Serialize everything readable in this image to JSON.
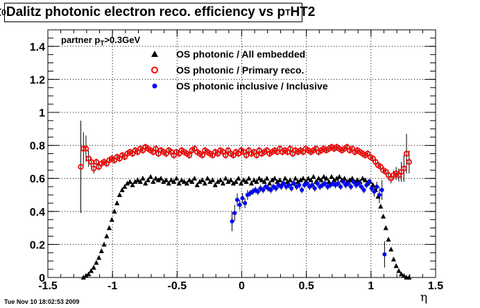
{
  "chart_data": {
    "type": "scatter",
    "title_prefix": "π",
    "title_sup": "0",
    "title_main": " Dalitz photonic electron reco. efficiency vs p",
    "title_sub": "T",
    "title_suffix": " HT2",
    "annotation_main": "partner p",
    "annotation_sub": "T",
    "annotation_tail": ">0.3GeV",
    "xlabel": "η",
    "ylabel": "",
    "xlim": [
      -1.5,
      1.5
    ],
    "ylim": [
      0,
      1.5
    ],
    "xticks": [
      "-1.5",
      "-1",
      "-0.5",
      "0",
      "0.5",
      "1",
      "1.5"
    ],
    "yticks": [
      "0",
      "0.2",
      "0.4",
      "0.6",
      "0.8",
      "1",
      "1.2",
      "1.4"
    ],
    "grid": true,
    "legend_position": "top",
    "series": [
      {
        "name": "OS photonic / All embedded",
        "marker": "triangle",
        "color": "#000000",
        "x": [
          -1.225,
          -1.205,
          -1.185,
          -1.165,
          -1.145,
          -1.125,
          -1.105,
          -1.085,
          -1.065,
          -1.045,
          -1.025,
          -1.005,
          -0.985,
          -0.965,
          -0.945,
          -0.925,
          -0.905,
          -0.885,
          -0.865,
          -0.845,
          -0.825,
          -0.805,
          -0.785,
          -0.765,
          -0.745,
          -0.725,
          -0.705,
          -0.685,
          -0.665,
          -0.645,
          -0.625,
          -0.605,
          -0.585,
          -0.565,
          -0.545,
          -0.525,
          -0.505,
          -0.485,
          -0.465,
          -0.445,
          -0.425,
          -0.405,
          -0.385,
          -0.365,
          -0.345,
          -0.325,
          -0.305,
          -0.285,
          -0.265,
          -0.245,
          -0.225,
          -0.205,
          -0.185,
          -0.165,
          -0.145,
          -0.125,
          -0.105,
          -0.085,
          -0.065,
          -0.045,
          -0.025,
          -0.005,
          0.015,
          0.035,
          0.055,
          0.075,
          0.095,
          0.115,
          0.135,
          0.155,
          0.175,
          0.195,
          0.215,
          0.235,
          0.255,
          0.275,
          0.295,
          0.315,
          0.335,
          0.355,
          0.375,
          0.395,
          0.415,
          0.435,
          0.455,
          0.475,
          0.495,
          0.515,
          0.535,
          0.555,
          0.575,
          0.595,
          0.615,
          0.635,
          0.655,
          0.675,
          0.695,
          0.715,
          0.735,
          0.755,
          0.775,
          0.795,
          0.815,
          0.835,
          0.855,
          0.875,
          0.895,
          0.915,
          0.935,
          0.955,
          0.975,
          0.995,
          1.015,
          1.035,
          1.055,
          1.075,
          1.095,
          1.115,
          1.135,
          1.155,
          1.175,
          1.195,
          1.215,
          1.235,
          1.255,
          1.275,
          1.295
        ],
        "y": [
          0.0,
          0.01,
          0.02,
          0.04,
          0.06,
          0.09,
          0.12,
          0.16,
          0.2,
          0.25,
          0.3,
          0.35,
          0.4,
          0.45,
          0.5,
          0.53,
          0.55,
          0.57,
          0.58,
          0.56,
          0.58,
          0.59,
          0.58,
          0.6,
          0.57,
          0.59,
          0.61,
          0.58,
          0.6,
          0.59,
          0.6,
          0.58,
          0.59,
          0.57,
          0.59,
          0.58,
          0.6,
          0.57,
          0.59,
          0.58,
          0.57,
          0.59,
          0.58,
          0.6,
          0.56,
          0.58,
          0.59,
          0.57,
          0.6,
          0.58,
          0.59,
          0.56,
          0.58,
          0.59,
          0.57,
          0.6,
          0.58,
          0.59,
          0.57,
          0.58,
          0.6,
          0.57,
          0.59,
          0.58,
          0.6,
          0.57,
          0.59,
          0.58,
          0.6,
          0.59,
          0.58,
          0.6,
          0.57,
          0.59,
          0.6,
          0.58,
          0.59,
          0.57,
          0.6,
          0.58,
          0.59,
          0.57,
          0.6,
          0.58,
          0.59,
          0.6,
          0.58,
          0.6,
          0.59,
          0.61,
          0.58,
          0.6,
          0.59,
          0.61,
          0.6,
          0.58,
          0.61,
          0.59,
          0.6,
          0.61,
          0.59,
          0.6,
          0.58,
          0.59,
          0.6,
          0.58,
          0.59,
          0.58,
          0.6,
          0.59,
          0.57,
          0.58,
          0.56,
          0.53,
          0.49,
          0.43,
          0.37,
          0.3,
          0.23,
          0.17,
          0.11,
          0.07,
          0.04,
          0.02,
          0.01,
          0.0,
          0.0
        ]
      },
      {
        "name": "OS photonic / Primary reco.",
        "marker": "open-circle",
        "color": "#ff0000",
        "x": [
          -1.245,
          -1.225,
          -1.205,
          -1.185,
          -1.165,
          -1.145,
          -1.125,
          -1.105,
          -1.085,
          -1.065,
          -1.045,
          -1.025,
          -1.005,
          -0.985,
          -0.965,
          -0.945,
          -0.925,
          -0.905,
          -0.885,
          -0.865,
          -0.845,
          -0.825,
          -0.805,
          -0.785,
          -0.765,
          -0.745,
          -0.725,
          -0.705,
          -0.685,
          -0.665,
          -0.645,
          -0.625,
          -0.605,
          -0.585,
          -0.565,
          -0.545,
          -0.525,
          -0.505,
          -0.485,
          -0.465,
          -0.445,
          -0.425,
          -0.405,
          -0.385,
          -0.365,
          -0.345,
          -0.325,
          -0.305,
          -0.285,
          -0.265,
          -0.245,
          -0.225,
          -0.205,
          -0.185,
          -0.165,
          -0.145,
          -0.125,
          -0.105,
          -0.085,
          -0.065,
          -0.045,
          -0.025,
          -0.005,
          0.015,
          0.035,
          0.055,
          0.075,
          0.095,
          0.115,
          0.135,
          0.155,
          0.175,
          0.195,
          0.215,
          0.235,
          0.255,
          0.275,
          0.295,
          0.315,
          0.335,
          0.355,
          0.375,
          0.395,
          0.415,
          0.435,
          0.455,
          0.475,
          0.495,
          0.515,
          0.535,
          0.555,
          0.575,
          0.595,
          0.615,
          0.635,
          0.655,
          0.675,
          0.695,
          0.715,
          0.735,
          0.755,
          0.775,
          0.795,
          0.815,
          0.835,
          0.855,
          0.875,
          0.895,
          0.915,
          0.935,
          0.955,
          0.975,
          0.995,
          1.015,
          1.035,
          1.055,
          1.075,
          1.095,
          1.115,
          1.135,
          1.155,
          1.175,
          1.195,
          1.215,
          1.235,
          1.255,
          1.275,
          1.295
        ],
        "y": [
          0.67,
          0.78,
          0.78,
          0.72,
          0.7,
          0.66,
          0.7,
          0.67,
          0.69,
          0.7,
          0.69,
          0.71,
          0.72,
          0.71,
          0.73,
          0.72,
          0.74,
          0.73,
          0.75,
          0.76,
          0.75,
          0.77,
          0.76,
          0.78,
          0.77,
          0.79,
          0.78,
          0.77,
          0.76,
          0.78,
          0.75,
          0.77,
          0.76,
          0.75,
          0.77,
          0.76,
          0.74,
          0.76,
          0.75,
          0.77,
          0.76,
          0.75,
          0.74,
          0.77,
          0.78,
          0.76,
          0.75,
          0.74,
          0.77,
          0.76,
          0.75,
          0.74,
          0.76,
          0.75,
          0.77,
          0.76,
          0.74,
          0.77,
          0.75,
          0.74,
          0.76,
          0.75,
          0.77,
          0.76,
          0.74,
          0.77,
          0.75,
          0.76,
          0.74,
          0.77,
          0.75,
          0.76,
          0.77,
          0.75,
          0.76,
          0.77,
          0.76,
          0.78,
          0.76,
          0.77,
          0.76,
          0.78,
          0.75,
          0.77,
          0.76,
          0.77,
          0.76,
          0.78,
          0.77,
          0.76,
          0.77,
          0.78,
          0.76,
          0.77,
          0.78,
          0.77,
          0.78,
          0.79,
          0.78,
          0.79,
          0.78,
          0.77,
          0.78,
          0.79,
          0.77,
          0.78,
          0.76,
          0.77,
          0.76,
          0.75,
          0.74,
          0.75,
          0.73,
          0.72,
          0.7,
          0.68,
          0.67,
          0.65,
          0.64,
          0.62,
          0.6,
          0.62,
          0.63,
          0.62,
          0.64,
          0.66,
          0.75,
          0.7
        ],
        "err": [
          0.28,
          0.1,
          0.08,
          0.05,
          0.03,
          0.03,
          0.02,
          0.02,
          0.02,
          0.02,
          0.02,
          0.02,
          0.02,
          0.02,
          0.02,
          0.02,
          0.02,
          0.02,
          0.02,
          0.02,
          0.02,
          0.02,
          0.02,
          0.02,
          0.02,
          0.02,
          0.02,
          0.02,
          0.02,
          0.02,
          0.02,
          0.02,
          0.02,
          0.02,
          0.02,
          0.02,
          0.02,
          0.02,
          0.02,
          0.02,
          0.02,
          0.02,
          0.02,
          0.02,
          0.02,
          0.02,
          0.02,
          0.02,
          0.02,
          0.02,
          0.02,
          0.02,
          0.02,
          0.02,
          0.02,
          0.02,
          0.02,
          0.02,
          0.02,
          0.02,
          0.02,
          0.02,
          0.02,
          0.02,
          0.02,
          0.02,
          0.02,
          0.02,
          0.02,
          0.02,
          0.02,
          0.02,
          0.02,
          0.02,
          0.02,
          0.02,
          0.02,
          0.02,
          0.02,
          0.02,
          0.02,
          0.02,
          0.02,
          0.02,
          0.02,
          0.02,
          0.02,
          0.02,
          0.02,
          0.02,
          0.02,
          0.02,
          0.02,
          0.02,
          0.02,
          0.02,
          0.02,
          0.02,
          0.02,
          0.02,
          0.02,
          0.02,
          0.02,
          0.02,
          0.02,
          0.02,
          0.02,
          0.02,
          0.02,
          0.02,
          0.02,
          0.02,
          0.02,
          0.02,
          0.02,
          0.02,
          0.02,
          0.02,
          0.02,
          0.03,
          0.03,
          0.03,
          0.04,
          0.04,
          0.06,
          0.08,
          0.12,
          0.07
        ]
      },
      {
        "name": "OS photonic inclusive / Inclusive",
        "marker": "filled-circle",
        "color": "#0000ff",
        "x": [
          -0.075,
          -0.055,
          -0.035,
          -0.015,
          0.005,
          0.025,
          0.045,
          0.065,
          0.085,
          0.105,
          0.125,
          0.145,
          0.165,
          0.185,
          0.205,
          0.225,
          0.245,
          0.265,
          0.285,
          0.305,
          0.325,
          0.345,
          0.365,
          0.385,
          0.405,
          0.425,
          0.445,
          0.465,
          0.485,
          0.505,
          0.525,
          0.545,
          0.565,
          0.585,
          0.605,
          0.625,
          0.645,
          0.665,
          0.685,
          0.705,
          0.725,
          0.745,
          0.765,
          0.785,
          0.805,
          0.825,
          0.845,
          0.865,
          0.885,
          0.905,
          0.925,
          0.945,
          0.965,
          0.985,
          1.005,
          1.025,
          1.045,
          1.065,
          1.085,
          1.105
        ],
        "y": [
          0.34,
          0.39,
          0.47,
          0.44,
          0.48,
          0.45,
          0.5,
          0.51,
          0.52,
          0.53,
          0.52,
          0.54,
          0.53,
          0.55,
          0.54,
          0.53,
          0.55,
          0.54,
          0.56,
          0.55,
          0.57,
          0.55,
          0.56,
          0.54,
          0.57,
          0.55,
          0.56,
          0.53,
          0.56,
          0.57,
          0.55,
          0.56,
          0.54,
          0.57,
          0.55,
          0.56,
          0.57,
          0.55,
          0.56,
          0.57,
          0.56,
          0.57,
          0.55,
          0.58,
          0.56,
          0.57,
          0.55,
          0.58,
          0.56,
          0.57,
          0.55,
          0.53,
          0.56,
          0.58,
          0.54,
          0.52,
          0.55,
          0.5,
          0.53,
          0.14
        ],
        "err": [
          0.06,
          0.05,
          0.04,
          0.03,
          0.03,
          0.03,
          0.03,
          0.02,
          0.02,
          0.02,
          0.02,
          0.02,
          0.02,
          0.02,
          0.02,
          0.02,
          0.02,
          0.02,
          0.02,
          0.02,
          0.02,
          0.02,
          0.02,
          0.02,
          0.02,
          0.02,
          0.02,
          0.02,
          0.02,
          0.02,
          0.02,
          0.02,
          0.02,
          0.02,
          0.02,
          0.02,
          0.02,
          0.02,
          0.02,
          0.02,
          0.02,
          0.02,
          0.02,
          0.02,
          0.02,
          0.02,
          0.02,
          0.02,
          0.02,
          0.02,
          0.02,
          0.02,
          0.02,
          0.02,
          0.02,
          0.03,
          0.03,
          0.05,
          0.06,
          0.08
        ]
      }
    ]
  },
  "footer_text": "Tue Nov 10 18:02:53 2009"
}
